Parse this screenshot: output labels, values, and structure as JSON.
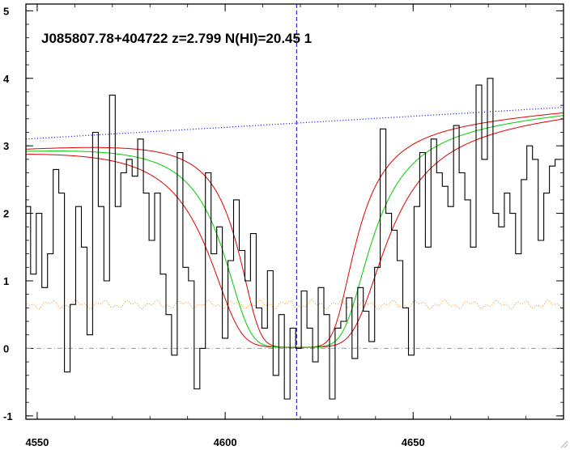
{
  "chart_data": {
    "type": "line",
    "title": "J085807.78+404722 z=2.799 N(HI)=20.45 1",
    "xlabel": "",
    "ylabel": "",
    "xlim": [
      4547,
      4690
    ],
    "ylim": [
      -1.05,
      5.1
    ],
    "x_ticks": [
      4550,
      4600,
      4650
    ],
    "y_ticks": [
      -1,
      0,
      1,
      2,
      3,
      4,
      5
    ],
    "grid": false,
    "line_center_x": 4619,
    "colors": {
      "flux": "#000000",
      "best_fit": "#00cc00",
      "fit_bounds": "#dd0000",
      "continuum": "#0000ff",
      "error": "#ff8800",
      "zero_line": "#999999",
      "center_line": "#0000cc"
    },
    "continuum": {
      "x": [
        4547,
        4690
      ],
      "y": [
        3.1,
        3.57
      ]
    },
    "zero_line_y": 0,
    "flux": {
      "x": [
        4547.5,
        4549,
        4550.5,
        4552,
        4553.5,
        4555,
        4556.5,
        4558,
        4559.5,
        4561,
        4562.5,
        4564,
        4565.5,
        4567,
        4568.5,
        4570,
        4571.5,
        4573,
        4574.5,
        4576,
        4577.5,
        4579,
        4580.5,
        4582,
        4583.5,
        4585,
        4586.5,
        4588,
        4589.5,
        4591,
        4592.5,
        4594,
        4595.5,
        4597,
        4598.5,
        4600,
        4601.5,
        4603,
        4604.5,
        4606,
        4607.5,
        4609,
        4610.5,
        4612,
        4613.5,
        4615,
        4616.5,
        4618,
        4619.5,
        4621,
        4622.5,
        4624,
        4625.5,
        4627,
        4628.5,
        4630,
        4631.5,
        4633,
        4634.5,
        4636,
        4637.5,
        4639,
        4640.5,
        4642,
        4643.5,
        4645,
        4646.5,
        4648,
        4649.5,
        4651,
        4652.5,
        4654,
        4655.5,
        4657,
        4658.5,
        4660,
        4661.5,
        4663,
        4664.5,
        4666,
        4667.5,
        4669,
        4670.5,
        4672,
        4673.5,
        4675,
        4676.5,
        4678,
        4679.5,
        4681,
        4682.5,
        4684,
        4685.5,
        4687,
        4688.5
      ],
      "y": [
        2.1,
        1.1,
        2.0,
        0.9,
        1.4,
        2.65,
        2.3,
        -0.35,
        0.65,
        2.1,
        1.5,
        0.2,
        3.2,
        2.1,
        1.0,
        3.75,
        2.1,
        2.6,
        2.8,
        2.55,
        3.1,
        2.3,
        1.6,
        2.3,
        1.1,
        0.5,
        -0.1,
        2.9,
        1.2,
        1.0,
        -0.6,
        0.0,
        2.6,
        1.4,
        1.8,
        0.15,
        1.3,
        2.2,
        1.45,
        1.0,
        1.7,
        0.6,
        0.3,
        1.15,
        -0.4,
        0.5,
        -0.75,
        0.3,
        0.0,
        0.85,
        0.3,
        -0.2,
        0.9,
        0.5,
        -0.75,
        0.3,
        0.4,
        0.75,
        -0.15,
        0.9,
        0.55,
        0.1,
        1.2,
        3.25,
        2.0,
        1.75,
        1.3,
        0.6,
        -0.1,
        2.1,
        2.9,
        1.5,
        3.1,
        2.6,
        2.4,
        2.1,
        3.3,
        2.6,
        2.2,
        1.5,
        3.9,
        2.8,
        4.0,
        2.0,
        1.8,
        2.3,
        2.0,
        1.4,
        2.5,
        3.0,
        2.8,
        1.6,
        2.3,
        2.7,
        2.8
      ]
    },
    "fit_model": {
      "center": 4619,
      "continuum_start": 3.0,
      "continuum_end": 3.55,
      "best_fit_width": 12,
      "lower_bound_width": 14.5,
      "upper_bound_width": 9.5
    },
    "error": {
      "level": 0.65
    }
  }
}
